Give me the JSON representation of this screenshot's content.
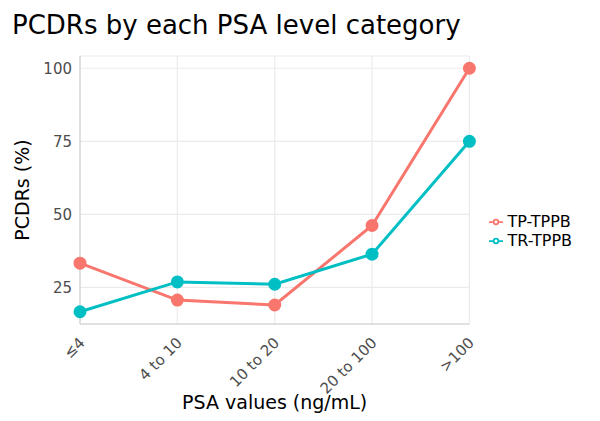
{
  "chart_data": {
    "type": "line",
    "title": "PCDRs by each PSA level category",
    "x_label": "PSA values (ng/mL)",
    "y_label": "PCDRs (%)",
    "categories": [
      "≤4",
      "4 to 10",
      "10 to 20",
      "20 to 100",
      ">100"
    ],
    "series": [
      {
        "name": "TP-TPPB",
        "color": "#F8766D",
        "values": [
          33.3,
          20.7,
          19.0,
          46.2,
          100
        ],
        "marker": "circle",
        "line_style": "solid"
      },
      {
        "name": "TR-TPPB",
        "color": "#00BFC4",
        "values": [
          16.7,
          26.9,
          26.1,
          36.4,
          75
        ],
        "marker": "circle",
        "line_style": "solid"
      }
    ],
    "ylim": [
      12.5,
      104.2
    ],
    "yticks": [
      25,
      50,
      75,
      100
    ],
    "grid": true,
    "legend": "right"
  }
}
